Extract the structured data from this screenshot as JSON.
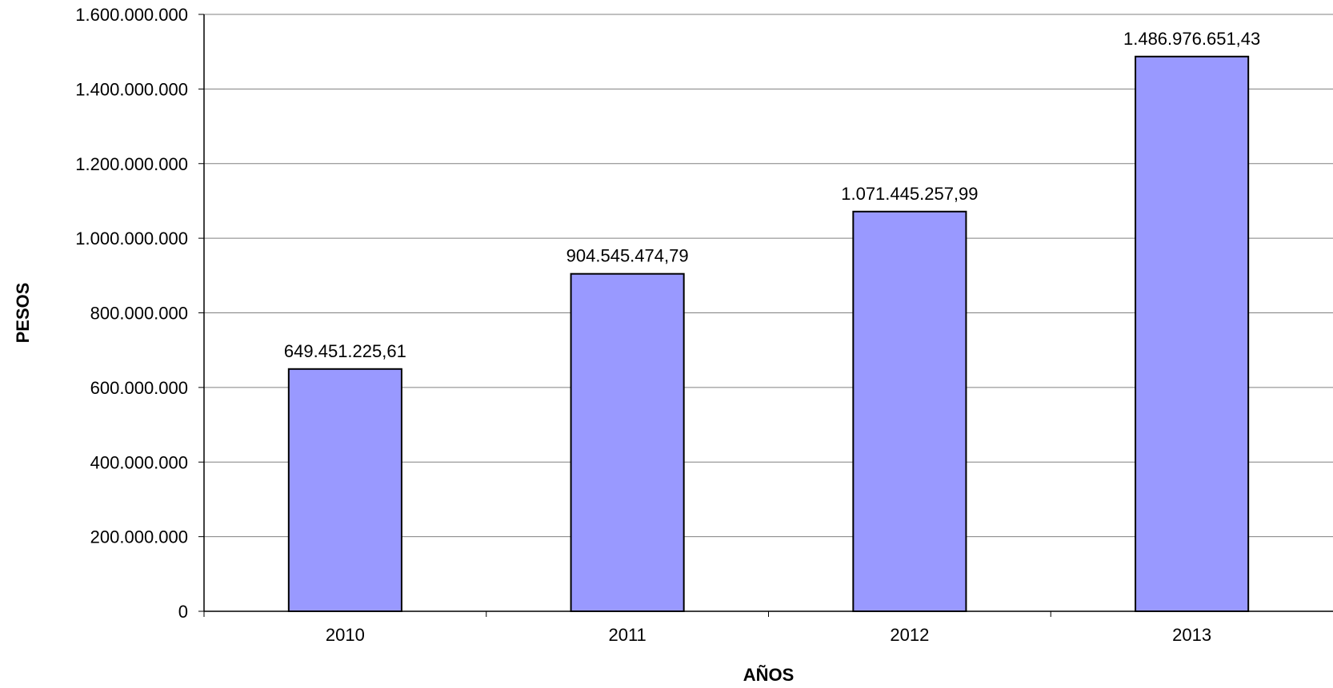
{
  "chart_data": {
    "type": "bar",
    "categories": [
      "2010",
      "2011",
      "2012",
      "2013"
    ],
    "values": [
      649451225.61,
      904545474.79,
      1071445257.99,
      1486976651.43
    ],
    "data_labels": [
      "649.451.225,61",
      "904.545.474,79",
      "1.071.445.257,99",
      "1.486.976.651,43"
    ],
    "xlabel": "AÑOS",
    "ylabel": "PESOS",
    "ylim": [
      0,
      1600000000
    ],
    "yticks": [
      0,
      200000000,
      400000000,
      600000000,
      800000000,
      1000000000,
      1200000000,
      1400000000,
      1600000000
    ],
    "ytick_labels": [
      "0",
      "200.000.000",
      "400.000.000",
      "600.000.000",
      "800.000.000",
      "1.000.000.000",
      "1.200.000.000",
      "1.400.000.000",
      "1.600.000.000"
    ],
    "grid": true,
    "bar_color": "#9999ff",
    "bar_border_color": "#000000",
    "grid_color": "#808080"
  }
}
